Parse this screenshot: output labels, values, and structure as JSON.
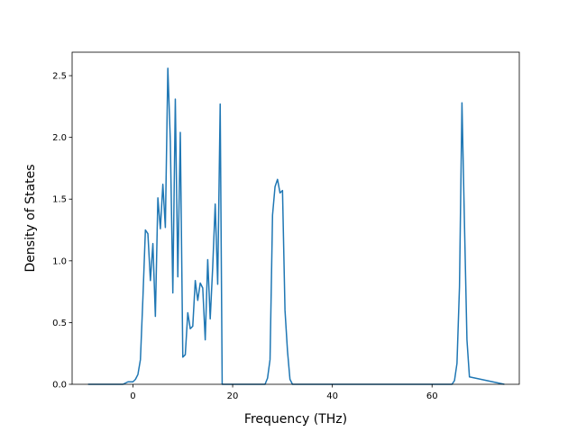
{
  "chart_data": {
    "type": "line",
    "title": "",
    "xlabel": "Frequency (THz)",
    "ylabel": "Density of States",
    "xlim": [
      -12.2,
      77.5
    ],
    "ylim": [
      0.0,
      2.69
    ],
    "xticks": [
      0,
      20,
      40,
      60
    ],
    "yticks": [
      0.0,
      0.5,
      1.0,
      1.5,
      2.0,
      2.5
    ],
    "xtick_labels": [
      "0",
      "20",
      "40",
      "60"
    ],
    "ytick_labels": [
      "0.0",
      "0.5",
      "1.0",
      "1.5",
      "2.0",
      "2.5"
    ],
    "grid": false,
    "legend": "none",
    "series": [
      {
        "color": "#1f77b4",
        "x": [
          -9.0,
          -2.0,
          -1.5,
          -1.0,
          0.0,
          0.5,
          1.0,
          1.5,
          2.0,
          2.5,
          3.0,
          3.5,
          4.0,
          4.5,
          5.0,
          5.5,
          6.0,
          6.5,
          7.0,
          7.5,
          8.0,
          8.5,
          9.0,
          9.5,
          10.0,
          10.5,
          11.0,
          11.5,
          12.0,
          12.5,
          13.0,
          13.5,
          14.0,
          14.5,
          15.0,
          15.5,
          16.0,
          16.5,
          17.0,
          17.5,
          17.9,
          18.2,
          26.5,
          27.0,
          27.5,
          28.0,
          28.5,
          29.0,
          29.5,
          30.0,
          30.5,
          31.0,
          31.5,
          32.0,
          64.0,
          64.5,
          65.0,
          65.5,
          66.0,
          66.5,
          67.0,
          67.5,
          74.5
        ],
        "y": [
          0.0,
          0.0,
          0.01,
          0.02,
          0.02,
          0.04,
          0.08,
          0.2,
          0.7,
          1.25,
          1.22,
          0.84,
          1.14,
          0.55,
          1.51,
          1.26,
          1.62,
          1.27,
          2.56,
          1.97,
          0.74,
          2.31,
          0.87,
          2.04,
          0.22,
          0.24,
          0.58,
          0.45,
          0.47,
          0.84,
          0.68,
          0.82,
          0.78,
          0.36,
          1.01,
          0.53,
          0.95,
          1.46,
          0.81,
          2.27,
          0.0,
          0.0,
          0.0,
          0.05,
          0.2,
          1.37,
          1.6,
          1.66,
          1.55,
          1.57,
          0.6,
          0.27,
          0.04,
          0.0,
          0.0,
          0.03,
          0.17,
          0.79,
          2.28,
          1.3,
          0.36,
          0.06,
          0.0
        ]
      }
    ]
  }
}
